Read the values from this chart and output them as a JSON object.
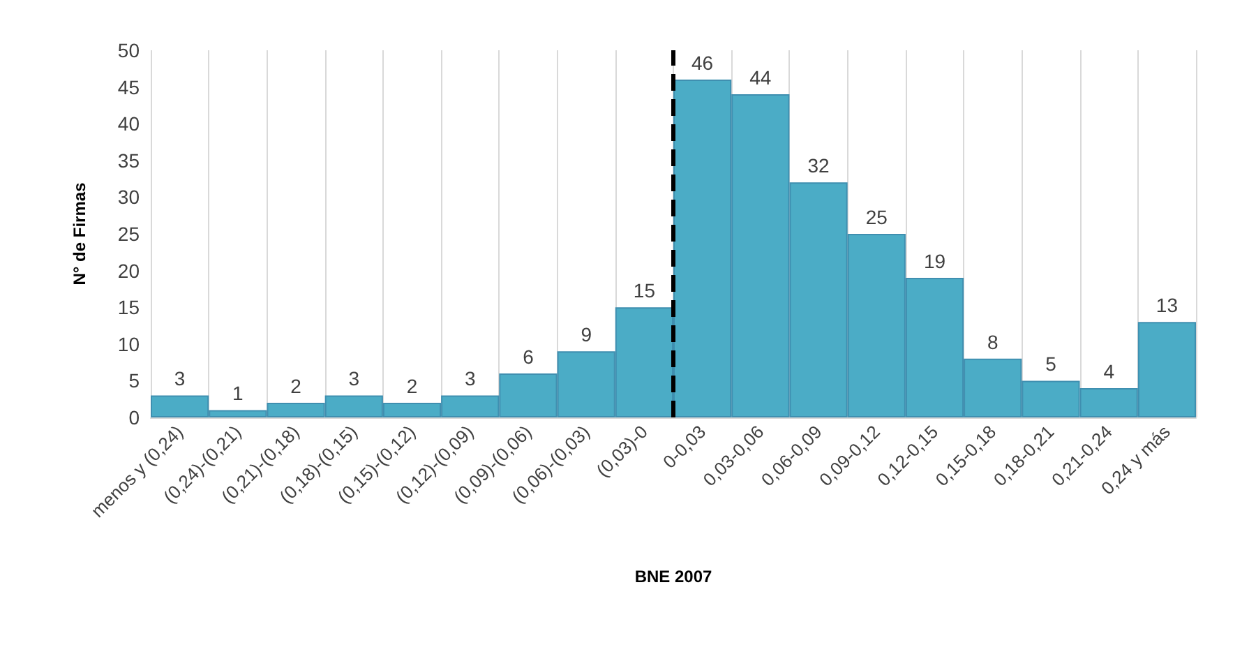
{
  "chart_data": {
    "type": "bar",
    "xlabel": "BNE 2007",
    "ylabel": "N° de Firmas",
    "categories": [
      "menos y (0,24)",
      "(0,24)-(0,21)",
      "(0,21)-(0,18)",
      "(0,18)-(0,15)",
      "(0,15)-(0,12)",
      "(0,12)-(0,09)",
      "(0,09)-(0,06)",
      "(0,06)-(0,03)",
      "(0,03)-0",
      "0-0,03",
      "0,03-0,06",
      "0,06-0,09",
      "0,09-0,12",
      "0,12-0,15",
      "0,15-0,18",
      "0,18-0,21",
      "0,21-0,24",
      "0,24 y más"
    ],
    "values": [
      3,
      1,
      2,
      3,
      2,
      3,
      6,
      9,
      15,
      46,
      44,
      32,
      25,
      19,
      8,
      5,
      4,
      13
    ],
    "color": "#4bacc6",
    "ylim": [
      0,
      50
    ],
    "yticks": [
      0,
      5,
      10,
      15,
      20,
      25,
      30,
      35,
      40,
      45,
      50
    ],
    "grid": "x",
    "data_labels": true,
    "ref_lines": [
      {
        "axis": "x",
        "value": "0-0,03",
        "color": "#000000",
        "line_style": "dashed"
      }
    ]
  }
}
